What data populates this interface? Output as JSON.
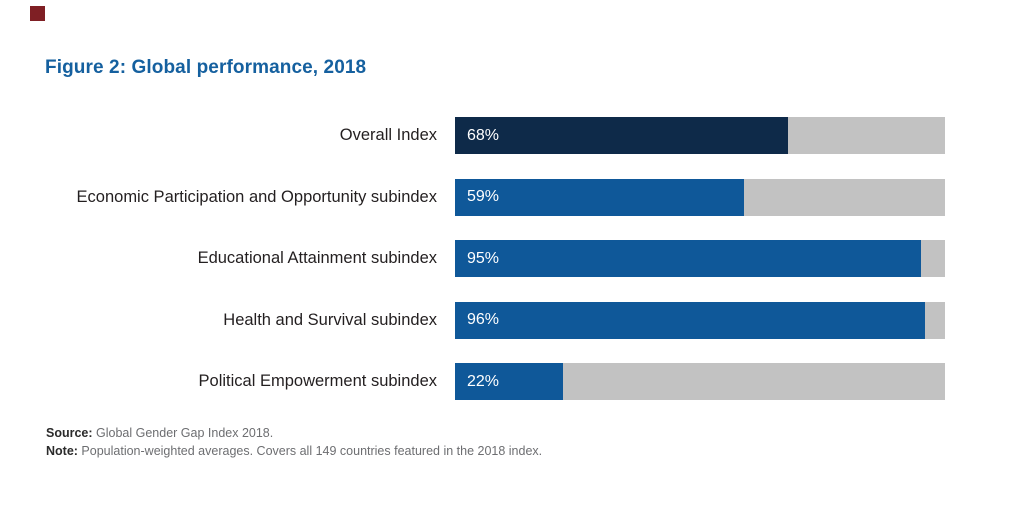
{
  "page": {
    "background": "#ffffff",
    "corner_marker_color": "#7f1f24"
  },
  "title": {
    "text": "Figure 2: Global performance, 2018",
    "color": "#15609f"
  },
  "chart_data": {
    "type": "bar",
    "orientation": "horizontal",
    "title": "Figure 2: Global performance, 2018",
    "categories": [
      "Overall Index",
      "Economic Participation and Opportunity subindex",
      "Educational Attainment subindex",
      "Health and Survival subindex",
      "Political Empowerment subindex"
    ],
    "values": [
      68,
      59,
      95,
      96,
      22
    ],
    "value_labels": [
      "68%",
      "59%",
      "95%",
      "96%",
      "22%"
    ],
    "xlim": [
      0,
      100
    ],
    "bar_colors": [
      "#0e2a49",
      "#0f5899",
      "#0f5899",
      "#0f5899",
      "#0f5899"
    ],
    "track_color": "#c2c2c2",
    "grid": false,
    "legend": false,
    "axes_visible": false
  },
  "footer": {
    "source_label": "Source:",
    "source_text": " Global Gender Gap Index 2018.",
    "note_label": "Note:",
    "note_text": " Population-weighted averages. Covers all 149 countries featured in the 2018 index."
  }
}
